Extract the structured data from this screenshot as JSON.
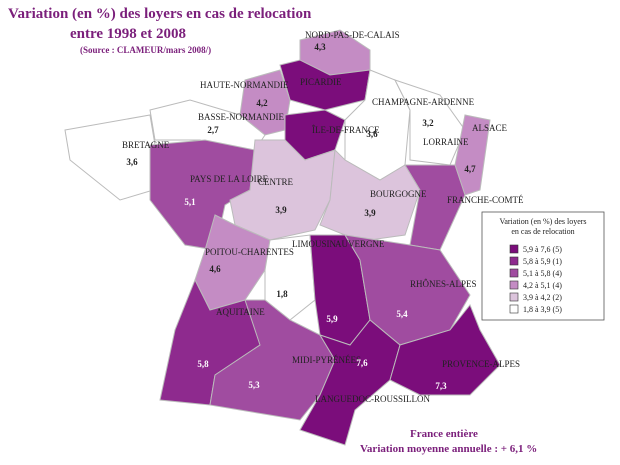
{
  "map": {
    "title": [
      "Variation (en %) des loyers en cas de relocation",
      "entre 1998 et 2008"
    ],
    "source": "(Source : CLAMEUR/mars 2008/)",
    "regions": [
      {
        "name": "NORD-PAS-DE-CALAIS",
        "value": "4,3",
        "color": "#c48cc4"
      },
      {
        "name": "PICARDIE",
        "color": "#7b0d7b"
      },
      {
        "name": "HAUTE-NORMANDIE",
        "value": "4,2",
        "color": "#c48cc4"
      },
      {
        "name": "ÎLE-DE-FRANCE",
        "color": "#7b0d7b"
      },
      {
        "name": "CHAMPAGNE-ARDENNE",
        "value": "3,6",
        "color": "#ffffff"
      },
      {
        "name": "BASSE-NORMANDIE",
        "value": "2,7",
        "color": "#ffffff"
      },
      {
        "name": "LORRAINE",
        "value": "3,2",
        "color": "#ffffff"
      },
      {
        "name": "ALSACE",
        "value": "4,7",
        "color": "#c48cc4"
      },
      {
        "name": "BRETAGNE",
        "value": "3,6",
        "color": "#ffffff"
      },
      {
        "name": "PAYS DE LA LOIRE",
        "value": "5,1",
        "color": "#a04ca0"
      },
      {
        "name": "CENTRE",
        "value": "3,9",
        "color": "#dcc4dc"
      },
      {
        "name": "BOURGOGNE",
        "value": "3,9",
        "color": "#dcc4dc"
      },
      {
        "name": "FRANCHE-COMTÉ",
        "color": "#a04ca0"
      },
      {
        "name": "POITOU-CHARENTES",
        "value": "4,6",
        "color": "#c48cc4"
      },
      {
        "name": "LIMOUSIN",
        "value": "1,8",
        "color": "#ffffff"
      },
      {
        "name": "AUVERGNE",
        "value": "5,9",
        "color": "#7b0d7b"
      },
      {
        "name": "RHÔNES-ALPES",
        "value": "5,4",
        "color": "#a04ca0"
      },
      {
        "name": "AQUITAINE",
        "value": "5,8",
        "color": "#8e2a8e"
      },
      {
        "name": "MIDI-PYRÉNÉES",
        "value": "5,3",
        "color": "#a04ca0"
      },
      {
        "name": "LANGUEDOC-ROUSSILLON",
        "value": "7,6",
        "color": "#7b0d7b"
      },
      {
        "name": "PROVENCE-ALPES",
        "value": "7,3",
        "color": "#7b0d7b"
      }
    ],
    "legend": {
      "title": [
        "Variation (en %) des loyers",
        "en cas de relocation"
      ],
      "entries": [
        {
          "label": "5,9 à 7,6  (5)",
          "color": "#7b0d7b"
        },
        {
          "label": "5,8 à 5,9  (1)",
          "color": "#8e2a8e"
        },
        {
          "label": "5,1 à 5,8  (4)",
          "color": "#a04ca0"
        },
        {
          "label": "4,2 à 5,1  (4)",
          "color": "#c48cc4"
        },
        {
          "label": "3,9 à 4,2  (2)",
          "color": "#dcc4dc"
        },
        {
          "label": "1,8 à 3,9  (5)",
          "color": "#ffffff"
        }
      ]
    },
    "footer": [
      "France entière",
      "Variation moyenne annuelle : + 6,1 %"
    ]
  }
}
